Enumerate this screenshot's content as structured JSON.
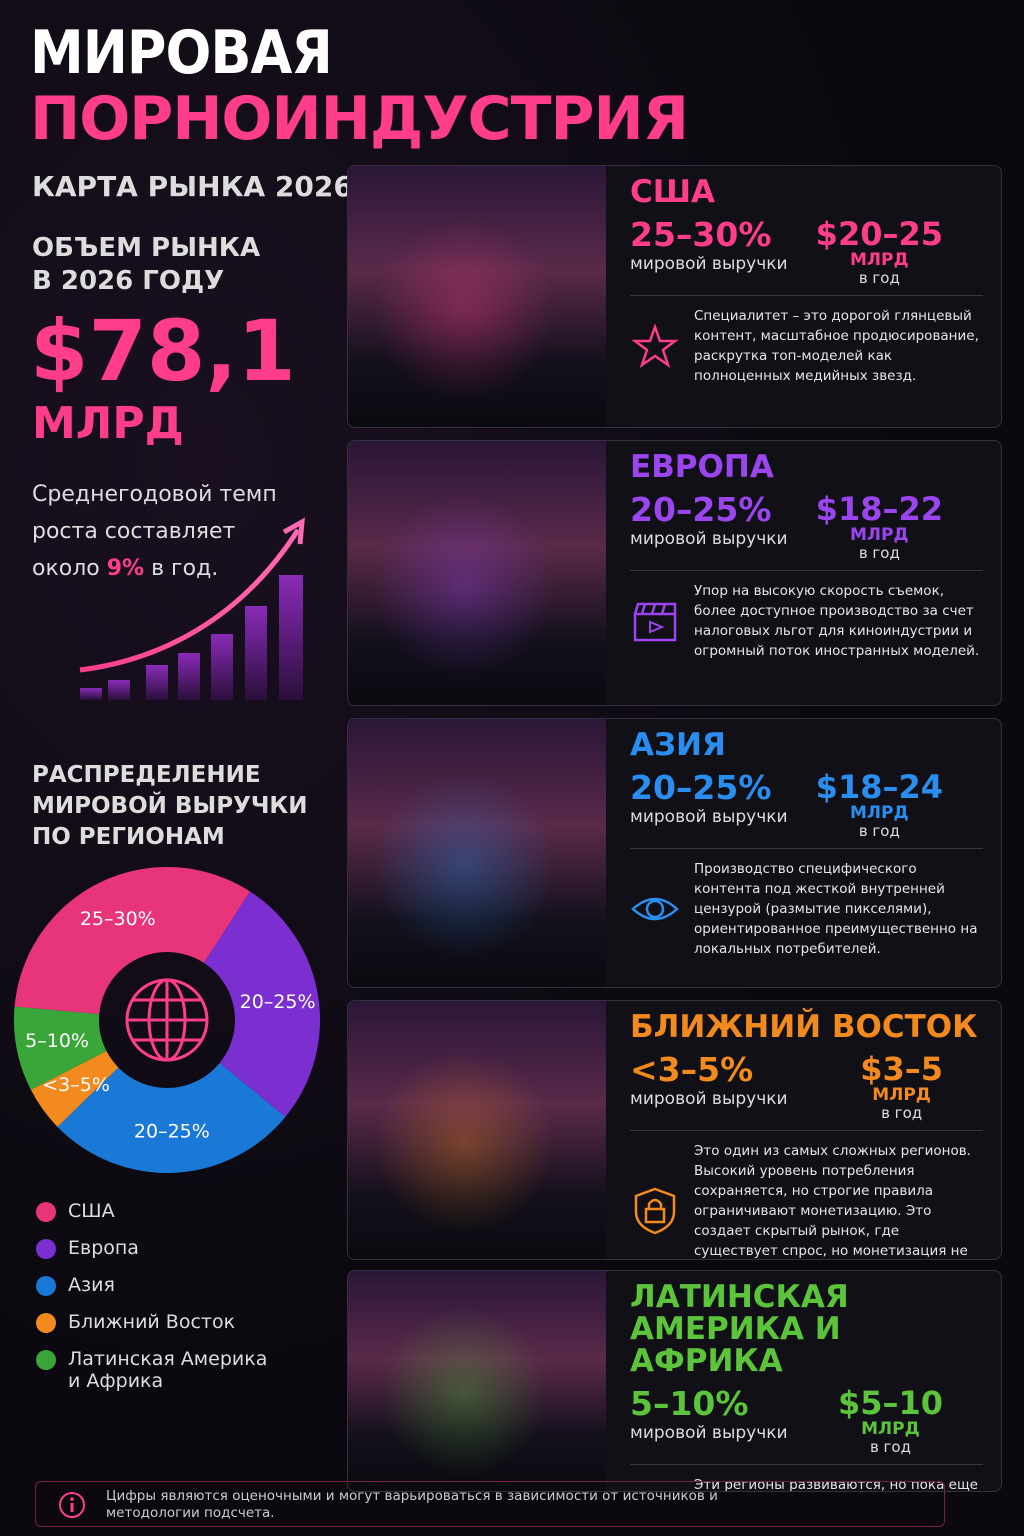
{
  "header": {
    "title_line1": "МИРОВАЯ",
    "title_line2": "ПОРНОИНДУСТРИЯ",
    "subtitle": "КАРТА РЫНКА 2026"
  },
  "market": {
    "label": "ОБЪЕМ РЫНКА В 2026 ГОДУ",
    "value": "$78,1",
    "unit": "МЛРД",
    "growth_before": "Среднегодовой темп роста составляет около",
    "growth_rate": "9%",
    "growth_after": "в год."
  },
  "chart_data": {
    "type": "pie",
    "title": "РАСПРЕДЕЛЕНИЕ МИРОВОЙ ВЫРУЧКИ ПО РЕГИОНАМ",
    "categories": [
      "США",
      "Европа",
      "Азия",
      "Ближний Восток",
      "Латинская Америка и Африка"
    ],
    "values": [
      27.5,
      22.5,
      22.5,
      4,
      7.5
    ],
    "value_labels": [
      "25–30%",
      "20–25%",
      "20–25%",
      "<3–5%",
      "5–10%"
    ],
    "colors": [
      "#e8357a",
      "#7b2fd0",
      "#1a78d6",
      "#f28a1e",
      "#3aa63a"
    ]
  },
  "regions": [
    {
      "name": "США",
      "share": "25–30%",
      "share_label": "мировой выручки",
      "revenue": "$20–25",
      "revenue_unit": "МЛРД",
      "revenue_period": "в год",
      "description": "Специалитет – это дорогой глянцевый контент, масштабное продюсирование, раскрутка топ-моделей как полноценных медийных звезд.",
      "color": "#ff3d8b"
    },
    {
      "name": "ЕВРОПА",
      "share": "20–25%",
      "share_label": "мировой выручки",
      "revenue": "$18–22",
      "revenue_unit": "МЛРД",
      "revenue_period": "в год",
      "description": "Упор на высокую скорость съемок, более доступное производство за счет налоговых льгот для киноиндустрии и огромный поток иностранных моделей.",
      "color": "#9b45f0"
    },
    {
      "name": "АЗИЯ",
      "share": "20–25%",
      "share_label": "мировой выручки",
      "revenue": "$18–24",
      "revenue_unit": "МЛРД",
      "revenue_period": "в год",
      "description": "Производство специфического контента под жесткой внутренней цензурой (размытие пикселями), ориентированное преимущественно на локальных потребителей.",
      "color": "#2a8ef0"
    },
    {
      "name": "БЛИЖНИЙ ВОСТОК",
      "share": "<3–5%",
      "share_label": "мировой выручки",
      "revenue": "$3–5",
      "revenue_unit": "МЛРД",
      "revenue_period": "в год",
      "description": "Это один из самых сложных регионов. Высокий уровень потребления сохраняется, но строгие правила ограничивают монетизацию. Это создает скрытый рынок, где существует спрос, но монетизация не осуществляется в полной мере.",
      "color": "#f28a1e"
    },
    {
      "name": "ЛАТИНСКАЯ АМЕРИКА И АФРИКА",
      "share": "5–10%",
      "share_label": "мировой выручки",
      "revenue": "$5–10",
      "revenue_unit": "МЛРД",
      "revenue_period": "в год",
      "description": "Эти регионы развиваются, но пока еще находится в стадии становления с точки зрения доходов. Монетизация все еще отстает.",
      "color": "#5cc43a"
    }
  ],
  "footnote": "Цифры являются оценочными и могут варьироваться в зависимости от источников и методологии подсчета."
}
